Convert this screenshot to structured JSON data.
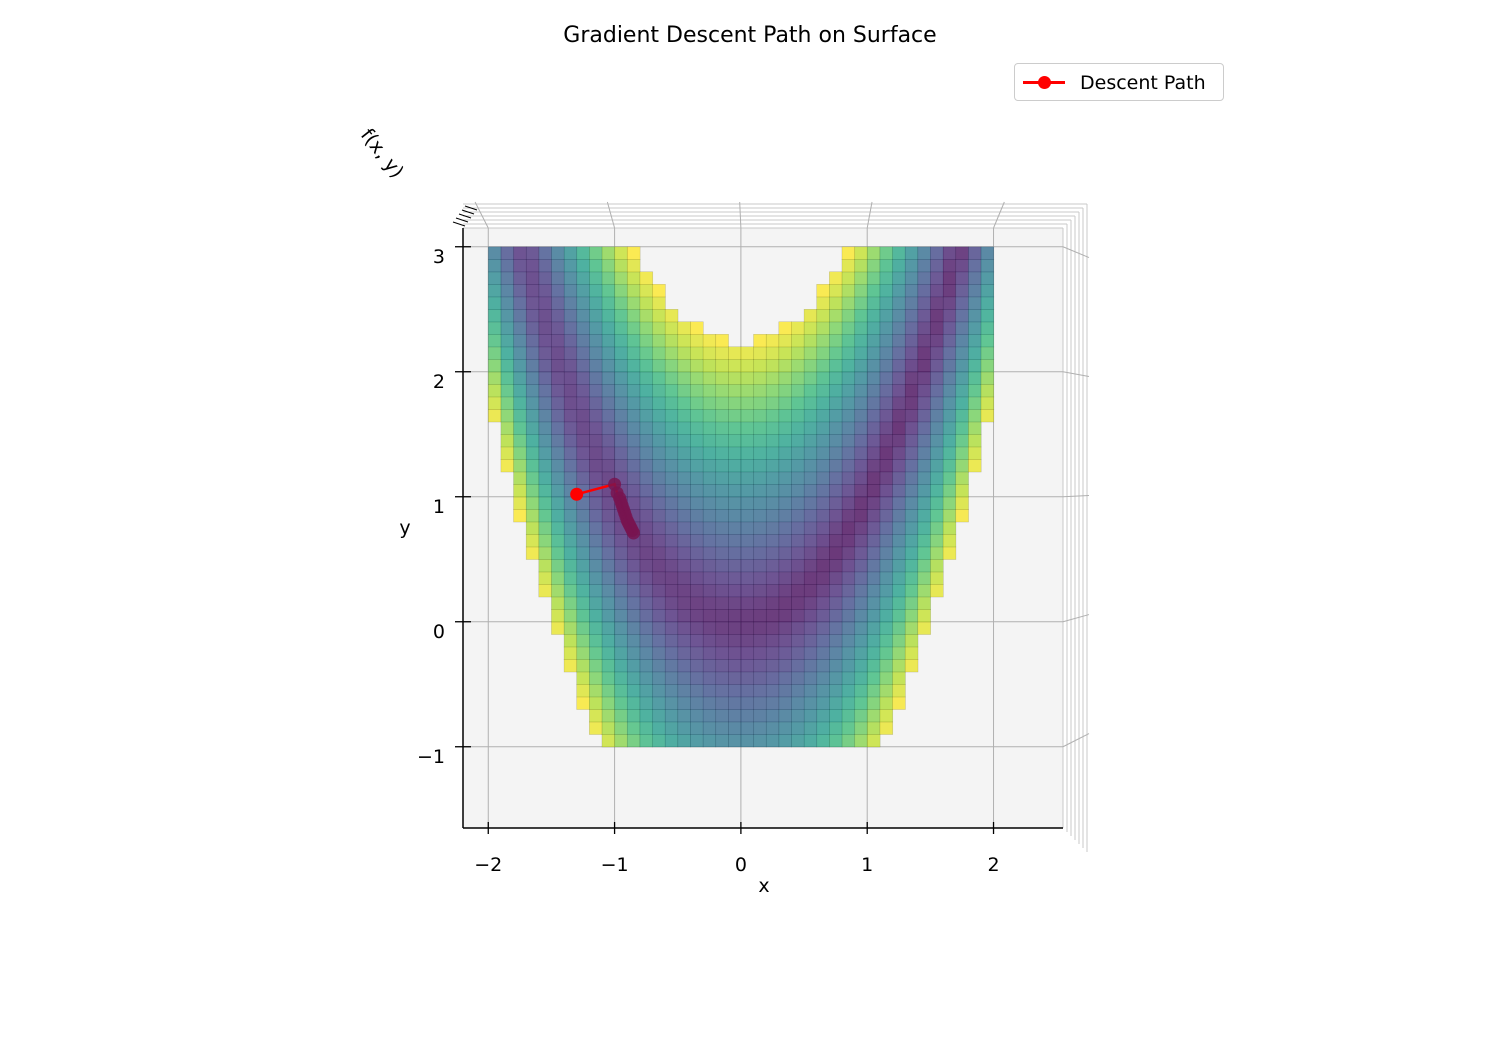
{
  "chart_data": {
    "type": "surface3d",
    "title": "Gradient Descent Path on Surface",
    "xlabel": "x",
    "ylabel": "y",
    "zlabel": "f(x, y)",
    "x_ticks": [
      -2,
      -1,
      0,
      1,
      2
    ],
    "y_ticks": [
      -1,
      0,
      1,
      2,
      3
    ],
    "xlim": [
      -2.2,
      2.55
    ],
    "ylim": [
      -1.65,
      3.15
    ],
    "surface_function": "(1 - x)^2 + 100 (y - x^2)^2",
    "colormap": "viridis",
    "legend": {
      "label": "Descent Path",
      "color": "#ff0000",
      "position": "top-right"
    },
    "descent_path": {
      "name": "Descent Path",
      "color": "#ff0000",
      "x": [
        -1.3,
        -1.0,
        -0.98,
        -0.96,
        -0.95,
        -0.94,
        -0.93,
        -0.92,
        -0.91,
        -0.9,
        -0.89,
        -0.88,
        -0.87,
        -0.86,
        -0.85
      ],
      "y": [
        1.02,
        1.1,
        1.03,
        0.99,
        0.96,
        0.93,
        0.9,
        0.87,
        0.84,
        0.81,
        0.79,
        0.77,
        0.75,
        0.73,
        0.71
      ]
    }
  }
}
